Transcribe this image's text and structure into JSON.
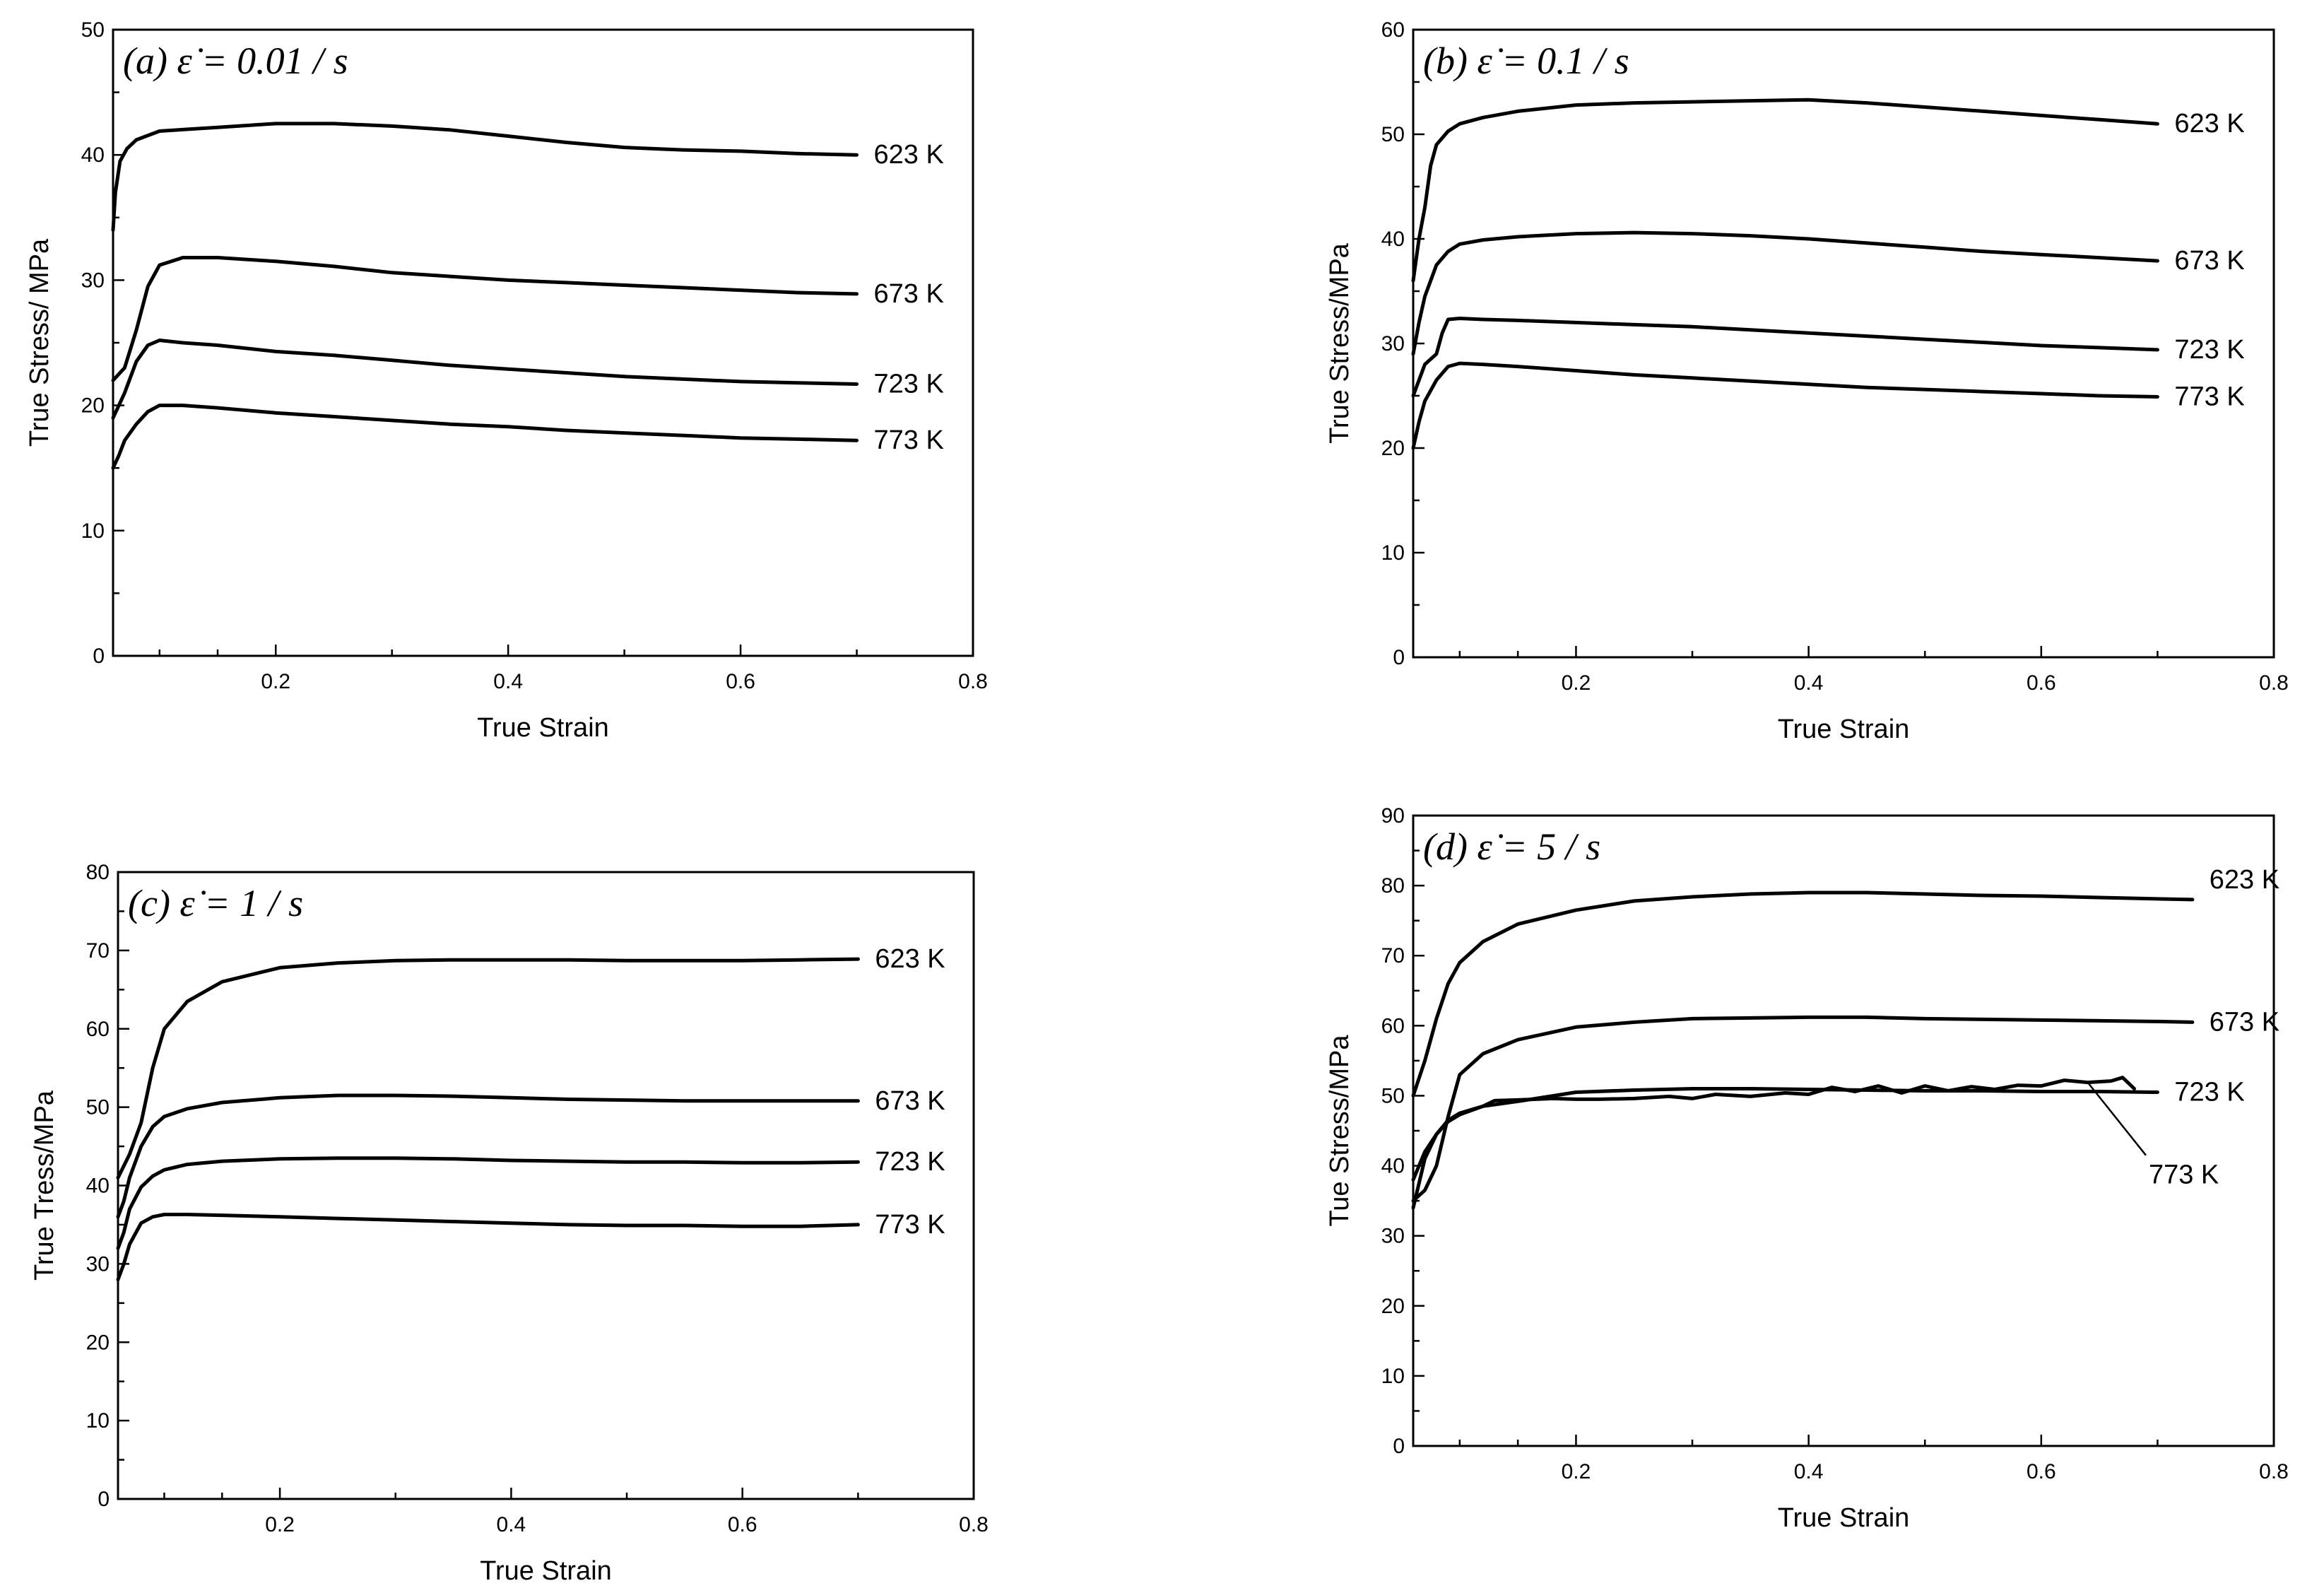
{
  "chart_data": [
    {
      "type": "line",
      "panel": "a",
      "title": "(a)  ε̇ = 0.01 / s",
      "xlabel": "True Strain",
      "ylabel": "True Stress/ MPa",
      "xlim": [
        0.06,
        0.8
      ],
      "ylim": [
        0,
        50
      ],
      "xticks": [
        0.2,
        0.4,
        0.6,
        0.8
      ],
      "yticks": [
        0,
        10,
        20,
        30,
        40,
        50
      ],
      "series": [
        {
          "name": "623 K",
          "x": [
            0.06,
            0.062,
            0.066,
            0.072,
            0.08,
            0.1,
            0.15,
            0.2,
            0.25,
            0.3,
            0.35,
            0.4,
            0.45,
            0.5,
            0.55,
            0.6,
            0.65,
            0.7
          ],
          "y": [
            34,
            37,
            39.5,
            40.5,
            41.2,
            41.9,
            42.2,
            42.5,
            42.5,
            42.3,
            42.0,
            41.5,
            41.0,
            40.6,
            40.4,
            40.3,
            40.1,
            40.0
          ]
        },
        {
          "name": "673 K",
          "x": [
            0.06,
            0.07,
            0.08,
            0.09,
            0.1,
            0.12,
            0.15,
            0.2,
            0.25,
            0.3,
            0.35,
            0.4,
            0.45,
            0.5,
            0.55,
            0.6,
            0.65,
            0.7
          ],
          "y": [
            22,
            23,
            26,
            29.5,
            31.2,
            31.8,
            31.8,
            31.5,
            31.1,
            30.6,
            30.3,
            30.0,
            29.8,
            29.6,
            29.4,
            29.2,
            29.0,
            28.9
          ]
        },
        {
          "name": "723 K",
          "x": [
            0.06,
            0.07,
            0.08,
            0.09,
            0.1,
            0.12,
            0.15,
            0.2,
            0.25,
            0.3,
            0.35,
            0.4,
            0.45,
            0.5,
            0.55,
            0.6,
            0.65,
            0.7
          ],
          "y": [
            19,
            21,
            23.5,
            24.8,
            25.2,
            25.0,
            24.8,
            24.3,
            24.0,
            23.6,
            23.2,
            22.9,
            22.6,
            22.3,
            22.1,
            21.9,
            21.8,
            21.7
          ]
        },
        {
          "name": "773 K",
          "x": [
            0.06,
            0.065,
            0.07,
            0.08,
            0.09,
            0.1,
            0.12,
            0.15,
            0.2,
            0.25,
            0.3,
            0.35,
            0.4,
            0.45,
            0.5,
            0.55,
            0.6,
            0.65,
            0.7
          ],
          "y": [
            15,
            16,
            17.2,
            18.5,
            19.5,
            20.0,
            20.0,
            19.8,
            19.4,
            19.1,
            18.8,
            18.5,
            18.3,
            18.0,
            17.8,
            17.6,
            17.4,
            17.3,
            17.2
          ]
        }
      ]
    },
    {
      "type": "line",
      "panel": "b",
      "title": "(b)  ε̇ = 0.1 / s",
      "xlabel": "True Strain",
      "ylabel": "True Stress/MPa",
      "xlim": [
        0.06,
        0.8
      ],
      "ylim": [
        0,
        60
      ],
      "xticks": [
        0.2,
        0.4,
        0.6,
        0.8
      ],
      "yticks": [
        0,
        10,
        20,
        30,
        40,
        50,
        60
      ],
      "series": [
        {
          "name": "623 K",
          "x": [
            0.06,
            0.065,
            0.07,
            0.075,
            0.08,
            0.09,
            0.1,
            0.12,
            0.15,
            0.2,
            0.25,
            0.3,
            0.35,
            0.4,
            0.45,
            0.5,
            0.55,
            0.6,
            0.65,
            0.7
          ],
          "y": [
            36,
            40,
            43,
            47,
            49,
            50.3,
            51.0,
            51.6,
            52.2,
            52.8,
            53.0,
            53.1,
            53.2,
            53.3,
            53.0,
            52.6,
            52.2,
            51.8,
            51.4,
            51.0
          ]
        },
        {
          "name": "673 K",
          "x": [
            0.06,
            0.065,
            0.07,
            0.08,
            0.09,
            0.1,
            0.12,
            0.15,
            0.2,
            0.25,
            0.3,
            0.35,
            0.4,
            0.45,
            0.5,
            0.55,
            0.6,
            0.65,
            0.7
          ],
          "y": [
            29,
            32,
            34.5,
            37.5,
            38.8,
            39.5,
            39.9,
            40.2,
            40.5,
            40.6,
            40.5,
            40.3,
            40.0,
            39.6,
            39.2,
            38.8,
            38.5,
            38.2,
            37.9
          ]
        },
        {
          "name": "723 K",
          "x": [
            0.06,
            0.07,
            0.08,
            0.085,
            0.09,
            0.1,
            0.12,
            0.15,
            0.2,
            0.25,
            0.3,
            0.35,
            0.4,
            0.45,
            0.5,
            0.55,
            0.6,
            0.65,
            0.7
          ],
          "y": [
            25,
            28,
            29,
            31,
            32.3,
            32.4,
            32.3,
            32.2,
            32.0,
            31.8,
            31.6,
            31.3,
            31.0,
            30.7,
            30.4,
            30.1,
            29.8,
            29.6,
            29.4
          ]
        },
        {
          "name": "773 K",
          "x": [
            0.06,
            0.065,
            0.07,
            0.08,
            0.09,
            0.1,
            0.12,
            0.15,
            0.2,
            0.25,
            0.3,
            0.35,
            0.4,
            0.45,
            0.5,
            0.55,
            0.6,
            0.65,
            0.7
          ],
          "y": [
            20,
            22.5,
            24.5,
            26.5,
            27.8,
            28.1,
            28.0,
            27.8,
            27.4,
            27.0,
            26.7,
            26.4,
            26.1,
            25.8,
            25.6,
            25.4,
            25.2,
            25.0,
            24.9
          ]
        }
      ]
    },
    {
      "type": "line",
      "panel": "c",
      "title": "(c)  ε̇ = 1 / s",
      "xlabel": "True Strain",
      "ylabel": "True Tress/MPa",
      "xlim": [
        0.06,
        0.8
      ],
      "ylim": [
        0,
        80
      ],
      "xticks": [
        0.2,
        0.4,
        0.6,
        0.8
      ],
      "yticks": [
        0,
        10,
        20,
        30,
        40,
        50,
        60,
        70,
        80
      ],
      "series": [
        {
          "name": "623 K",
          "x": [
            0.06,
            0.07,
            0.08,
            0.09,
            0.1,
            0.12,
            0.15,
            0.2,
            0.25,
            0.3,
            0.35,
            0.4,
            0.45,
            0.5,
            0.55,
            0.6,
            0.65,
            0.7
          ],
          "y": [
            41,
            44,
            48,
            55,
            60,
            63.5,
            66,
            67.8,
            68.4,
            68.7,
            68.8,
            68.8,
            68.8,
            68.7,
            68.7,
            68.7,
            68.8,
            68.9
          ]
        },
        {
          "name": "673 K",
          "x": [
            0.06,
            0.065,
            0.07,
            0.08,
            0.09,
            0.1,
            0.12,
            0.15,
            0.2,
            0.25,
            0.3,
            0.35,
            0.4,
            0.45,
            0.5,
            0.55,
            0.6,
            0.65,
            0.7
          ],
          "y": [
            36,
            38,
            41,
            45,
            47.5,
            48.8,
            49.8,
            50.6,
            51.2,
            51.5,
            51.5,
            51.4,
            51.2,
            51.0,
            50.9,
            50.8,
            50.8,
            50.8,
            50.8
          ]
        },
        {
          "name": "723 K",
          "x": [
            0.06,
            0.065,
            0.07,
            0.08,
            0.09,
            0.1,
            0.12,
            0.15,
            0.2,
            0.25,
            0.3,
            0.35,
            0.4,
            0.45,
            0.5,
            0.55,
            0.6,
            0.65,
            0.7
          ],
          "y": [
            32,
            34,
            37,
            39.8,
            41.2,
            42.0,
            42.7,
            43.1,
            43.4,
            43.5,
            43.5,
            43.4,
            43.2,
            43.1,
            43.0,
            43.0,
            42.9,
            42.9,
            43.0
          ]
        },
        {
          "name": "773 K",
          "x": [
            0.06,
            0.065,
            0.07,
            0.08,
            0.09,
            0.1,
            0.12,
            0.15,
            0.2,
            0.25,
            0.3,
            0.35,
            0.4,
            0.45,
            0.5,
            0.55,
            0.6,
            0.65,
            0.7
          ],
          "y": [
            28,
            30,
            32.5,
            35.2,
            36.0,
            36.3,
            36.3,
            36.2,
            36.0,
            35.8,
            35.6,
            35.4,
            35.2,
            35.0,
            34.9,
            34.9,
            34.8,
            34.8,
            35.0
          ]
        }
      ]
    },
    {
      "type": "line",
      "panel": "d",
      "title": "(d)  ε̇ = 5 / s",
      "xlabel": "True Strain",
      "ylabel": "Tue Stress/MPa",
      "xlim": [
        0.06,
        0.8
      ],
      "ylim": [
        0,
        90
      ],
      "xticks": [
        0.2,
        0.4,
        0.6,
        0.8
      ],
      "yticks": [
        0,
        10,
        20,
        30,
        40,
        50,
        60,
        70,
        80,
        90
      ],
      "annotation": "773 K",
      "series": [
        {
          "name": "623 K",
          "x": [
            0.06,
            0.07,
            0.08,
            0.09,
            0.1,
            0.12,
            0.15,
            0.2,
            0.25,
            0.3,
            0.35,
            0.4,
            0.45,
            0.5,
            0.55,
            0.6,
            0.65,
            0.7,
            0.73
          ],
          "y": [
            50,
            55,
            61,
            66,
            69,
            72,
            74.5,
            76.5,
            77.8,
            78.4,
            78.8,
            79.0,
            79.0,
            78.8,
            78.6,
            78.5,
            78.3,
            78.1,
            78.0
          ]
        },
        {
          "name": "673 K",
          "x": [
            0.06,
            0.07,
            0.08,
            0.09,
            0.1,
            0.12,
            0.15,
            0.2,
            0.25,
            0.3,
            0.35,
            0.4,
            0.45,
            0.5,
            0.55,
            0.6,
            0.65,
            0.7,
            0.73
          ],
          "y": [
            35,
            36.5,
            40,
            47,
            53,
            56,
            58,
            59.8,
            60.5,
            61.0,
            61.1,
            61.2,
            61.2,
            61.0,
            60.9,
            60.8,
            60.7,
            60.6,
            60.5
          ]
        },
        {
          "name": "723 K",
          "x": [
            0.06,
            0.07,
            0.08,
            0.09,
            0.1,
            0.12,
            0.15,
            0.2,
            0.25,
            0.3,
            0.35,
            0.4,
            0.45,
            0.5,
            0.55,
            0.6,
            0.65,
            0.7
          ],
          "y": [
            34,
            41,
            44.5,
            46.5,
            47.5,
            48.5,
            49.2,
            50.5,
            50.8,
            51.0,
            51.0,
            50.9,
            50.8,
            50.7,
            50.7,
            50.6,
            50.6,
            50.5
          ]
        },
        {
          "name": "773 K",
          "x": [
            0.06,
            0.07,
            0.08,
            0.09,
            0.1,
            0.12,
            0.13,
            0.15,
            0.18,
            0.2,
            0.22,
            0.25,
            0.28,
            0.3,
            0.32,
            0.35,
            0.38,
            0.4,
            0.42,
            0.44,
            0.46,
            0.48,
            0.5,
            0.52,
            0.54,
            0.56,
            0.58,
            0.6,
            0.62,
            0.64,
            0.66,
            0.67,
            0.68
          ],
          "y": [
            38,
            42,
            44.5,
            46.3,
            47.3,
            48.5,
            49.3,
            49.4,
            49.6,
            49.5,
            49.5,
            49.6,
            49.9,
            49.6,
            50.2,
            49.9,
            50.4,
            50.2,
            51.2,
            50.6,
            51.4,
            50.4,
            51.4,
            50.7,
            51.3,
            50.9,
            51.5,
            51.4,
            52.2,
            51.9,
            52.1,
            52.6,
            51.0
          ]
        }
      ]
    }
  ]
}
